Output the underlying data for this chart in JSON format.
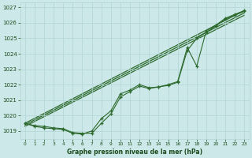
{
  "x": [
    0,
    1,
    2,
    3,
    4,
    5,
    6,
    7,
    8,
    9,
    10,
    11,
    12,
    13,
    14,
    15,
    16,
    17,
    18,
    19,
    20,
    21,
    22,
    23
  ],
  "series_zigzag": [
    1019.5,
    1019.3,
    1019.2,
    1019.15,
    1019.1,
    1018.85,
    1018.8,
    1019.0,
    1019.8,
    1020.3,
    1021.4,
    1021.65,
    1022.0,
    1021.8,
    1021.85,
    1022.0,
    1022.2,
    1024.4,
    1023.2,
    1025.5,
    1025.85,
    1026.3,
    1026.55,
    1026.8
  ],
  "series_smooth": [
    1019.5,
    1019.35,
    1019.3,
    1019.2,
    1019.15,
    1018.9,
    1018.85,
    1018.85,
    1019.5,
    1020.1,
    1021.2,
    1021.55,
    1021.9,
    1021.75,
    1021.85,
    1021.95,
    1022.15,
    1024.2,
    1025.0,
    1025.4,
    1025.8,
    1026.25,
    1026.5,
    1026.75
  ],
  "trend1_x": [
    0,
    23
  ],
  "trend1_y": [
    1019.5,
    1026.8
  ],
  "trend2_x": [
    0,
    23
  ],
  "trend2_y": [
    1019.4,
    1026.65
  ],
  "trend3_x": [
    0,
    23
  ],
  "trend3_y": [
    1019.3,
    1026.5
  ],
  "ylim": [
    1018.5,
    1027.3
  ],
  "xlim": [
    -0.5,
    23.5
  ],
  "yticks": [
    1019,
    1020,
    1021,
    1022,
    1023,
    1024,
    1025,
    1026,
    1027
  ],
  "xticks": [
    0,
    1,
    2,
    3,
    4,
    5,
    6,
    7,
    8,
    9,
    10,
    11,
    12,
    13,
    14,
    15,
    16,
    17,
    18,
    19,
    20,
    21,
    22,
    23
  ],
  "xlabel": "Graphe pression niveau de la mer (hPa)",
  "line_color": "#2d6a2d",
  "bg_color": "#cce8e8",
  "grid_color": "#b0d4d4",
  "tick_color": "#1a4a1a",
  "xlabel_color": "#1a4a1a"
}
